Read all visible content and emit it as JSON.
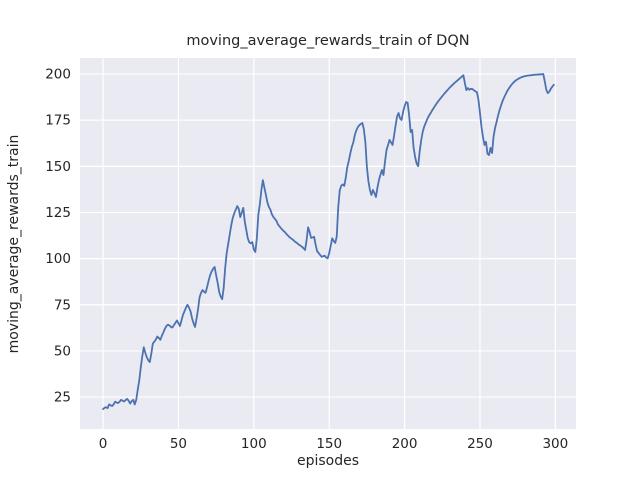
{
  "chart_data": {
    "type": "line",
    "title": "moving_average_rewards_train of DQN",
    "xlabel": "episodes",
    "ylabel": "moving_average_rewards_train",
    "legend": false,
    "grid": true,
    "plot_bg_color": "#eaeaf2",
    "grid_color": "#ffffff",
    "line_color": "#4c72b0",
    "text_color": "#262626",
    "xlim": [
      -15.3,
      313.7
    ],
    "ylim": [
      7.7,
      208.7
    ],
    "xticks": [
      0,
      50,
      100,
      150,
      200,
      250,
      300
    ],
    "yticks": [
      25,
      50,
      75,
      100,
      125,
      150,
      175,
      200
    ],
    "series": [
      {
        "name": "moving_average_rewards_train",
        "x_start": 0,
        "x_step": 1,
        "values": [
          18.5,
          19.2,
          19.5,
          19.0,
          21.0,
          20.5,
          20.2,
          21.0,
          22.5,
          22.0,
          21.8,
          22.5,
          23.5,
          23.0,
          22.6,
          23.4,
          24.0,
          23.0,
          21.5,
          22.8,
          23.5,
          21.0,
          23.5,
          29.0,
          34.0,
          41.0,
          47.0,
          52.0,
          49.0,
          46.5,
          45.0,
          44.0,
          48.5,
          54.0,
          55.0,
          56.2,
          57.8,
          57.0,
          56.0,
          58.2,
          60.0,
          62.0,
          63.5,
          64.2,
          63.8,
          63.0,
          62.7,
          64.0,
          65.2,
          66.5,
          65.0,
          63.5,
          66.5,
          69.5,
          71.5,
          73.5,
          75.0,
          73.5,
          71.5,
          67.8,
          65.0,
          63.0,
          67.5,
          72.5,
          79.0,
          81.5,
          83.0,
          82.0,
          81.5,
          84.5,
          88.0,
          91.0,
          93.0,
          94.5,
          95.5,
          91.0,
          87.0,
          82.0,
          79.5,
          78.0,
          84.0,
          95.0,
          103.0,
          108.0,
          113.0,
          118.0,
          122.0,
          124.5,
          126.5,
          128.5,
          127.0,
          122.5,
          125.0,
          127.5,
          120.0,
          115.5,
          111.0,
          108.8,
          108.3,
          109.0,
          105.0,
          103.6,
          111.0,
          124.0,
          129.5,
          137.0,
          142.5,
          138.5,
          134.5,
          130.5,
          128.0,
          126.5,
          124.0,
          122.5,
          121.5,
          120.5,
          118.5,
          117.5,
          116.5,
          115.6,
          114.8,
          114.0,
          113.0,
          112.2,
          111.4,
          110.8,
          110.2,
          109.4,
          108.8,
          108.2,
          107.5,
          107.0,
          106.4,
          105.6,
          104.7,
          110.0,
          117.0,
          114.5,
          111.2,
          111.5,
          111.8,
          107.5,
          104.0,
          103.0,
          102.0,
          101.0,
          101.3,
          101.6,
          100.6,
          100.2,
          103.0,
          107.0,
          111.0,
          109.5,
          108.5,
          112.0,
          128.0,
          137.0,
          139.5,
          140.2,
          139.4,
          144.0,
          149.6,
          153.0,
          157.0,
          160.5,
          163.0,
          167.0,
          169.5,
          171.3,
          172.3,
          173.0,
          173.5,
          170.0,
          163.0,
          149.6,
          142.0,
          137.2,
          134.5,
          137.2,
          135.5,
          133.4,
          138.5,
          142.6,
          145.5,
          148.0,
          145.3,
          152.5,
          158.8,
          161.5,
          164.3,
          163.0,
          161.6,
          166.5,
          172.0,
          177.0,
          178.9,
          176.0,
          175.1,
          179.5,
          182.5,
          184.8,
          184.5,
          177.8,
          168.6,
          169.7,
          160.0,
          155.0,
          151.5,
          150.1,
          158.0,
          164.0,
          168.6,
          171.5,
          173.5,
          175.5,
          177.2,
          178.5,
          179.9,
          181.2,
          182.5,
          183.7,
          184.9,
          186.0,
          187.0,
          188.0,
          189.0,
          190.0,
          190.9,
          191.8,
          192.7,
          193.5,
          194.3,
          195.1,
          195.8,
          196.5,
          197.2,
          197.9,
          198.6,
          199.4,
          195.0,
          191.3,
          192.4,
          191.5,
          192.0,
          191.9,
          191.2,
          190.6,
          190.2,
          186.0,
          179.0,
          171.3,
          165.9,
          161.6,
          163.3,
          156.8,
          156.1,
          160.0,
          157.2,
          165.9,
          170.8,
          174.0,
          177.5,
          180.5,
          183.0,
          185.4,
          187.3,
          189.0,
          190.7,
          192.0,
          193.2,
          194.3,
          195.2,
          196.0,
          196.7,
          197.2,
          197.7,
          198.1,
          198.4,
          198.7,
          198.9,
          199.1,
          199.2,
          199.3,
          199.4,
          199.5,
          199.6,
          199.7,
          199.7,
          199.8,
          199.8,
          199.9,
          200.0,
          196.0,
          191.5,
          189.7,
          190.5,
          192.0,
          193.2,
          194.2
        ]
      }
    ]
  }
}
